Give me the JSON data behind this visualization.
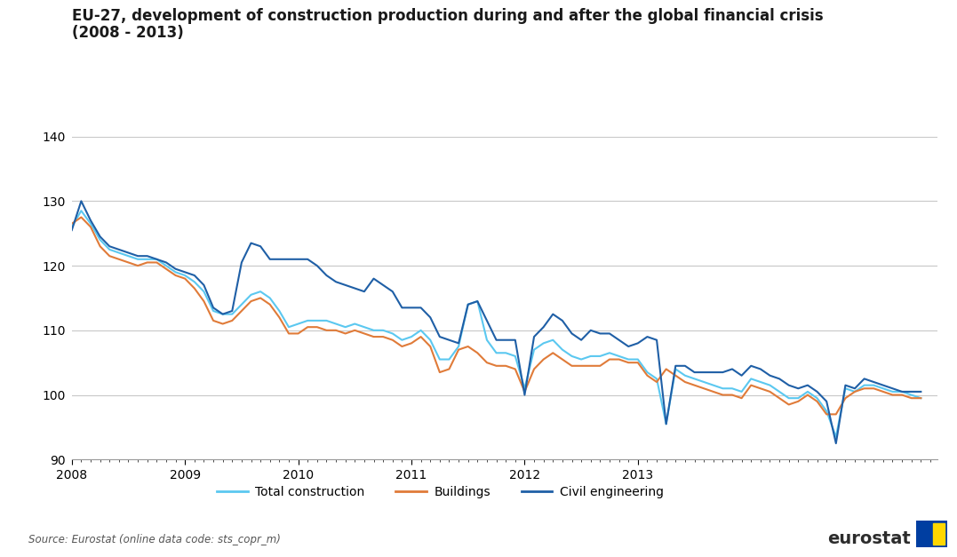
{
  "title_line1": "EU-27, development of construction production during and after the global financial crisis",
  "title_line2": "(2008 - 2013)",
  "source_text": "Source: Eurostat (online data code: sts_copr_m)",
  "ylim": [
    90,
    140
  ],
  "yticks": [
    90,
    100,
    110,
    120,
    130,
    140
  ],
  "colors": {
    "total_construction": "#5BC8F0",
    "buildings": "#E07B39",
    "civil_engineering": "#1F5FA6"
  },
  "legend_labels": [
    "Total construction",
    "Buildings",
    "Civil engineering"
  ],
  "background_color": "#FFFFFF",
  "grid_color": "#C8C8C8",
  "title_fontsize": 12,
  "tick_fontsize": 10,
  "legend_fontsize": 10,
  "total_construction": [
    126.0,
    128.5,
    126.5,
    124.0,
    122.5,
    122.0,
    121.5,
    121.0,
    121.0,
    121.0,
    120.0,
    119.0,
    118.5,
    117.5,
    116.0,
    113.0,
    112.5,
    112.5,
    114.0,
    115.5,
    116.0,
    115.0,
    113.0,
    110.5,
    111.0,
    111.5,
    111.5,
    111.5,
    111.0,
    110.5,
    111.0,
    110.5,
    110.0,
    110.0,
    109.5,
    108.5,
    109.0,
    110.0,
    108.5,
    105.5,
    105.5,
    107.5,
    114.0,
    114.5,
    108.5,
    106.5,
    106.5,
    106.0,
    101.0,
    107.0,
    108.0,
    108.5,
    107.0,
    106.0,
    105.5,
    106.0,
    106.0,
    106.5,
    106.0,
    105.5,
    105.5,
    103.5,
    102.5,
    95.5,
    104.0,
    103.0,
    102.5,
    102.0,
    101.5,
    101.0,
    101.0,
    100.5,
    102.5,
    102.0,
    101.5,
    100.5,
    99.5,
    99.5,
    100.5,
    99.5,
    97.5,
    93.5,
    101.0,
    100.5,
    101.5,
    101.5,
    101.0,
    100.5,
    100.5,
    100.0,
    99.5
  ],
  "buildings": [
    126.5,
    127.5,
    126.0,
    123.0,
    121.5,
    121.0,
    120.5,
    120.0,
    120.5,
    120.5,
    119.5,
    118.5,
    118.0,
    116.5,
    114.5,
    111.5,
    111.0,
    111.5,
    113.0,
    114.5,
    115.0,
    114.0,
    112.0,
    109.5,
    109.5,
    110.5,
    110.5,
    110.0,
    110.0,
    109.5,
    110.0,
    109.5,
    109.0,
    109.0,
    108.5,
    107.5,
    108.0,
    109.0,
    107.5,
    103.5,
    104.0,
    107.0,
    107.5,
    106.5,
    105.0,
    104.5,
    104.5,
    104.0,
    100.5,
    104.0,
    105.5,
    106.5,
    105.5,
    104.5,
    104.5,
    104.5,
    104.5,
    105.5,
    105.5,
    105.0,
    105.0,
    103.0,
    102.0,
    104.0,
    103.0,
    102.0,
    101.5,
    101.0,
    100.5,
    100.0,
    100.0,
    99.5,
    101.5,
    101.0,
    100.5,
    99.5,
    98.5,
    99.0,
    100.0,
    99.0,
    97.0,
    97.0,
    99.5,
    100.5,
    101.0,
    101.0,
    100.5,
    100.0,
    100.0,
    99.5,
    99.5
  ],
  "civil_engineering": [
    125.5,
    130.0,
    127.0,
    124.5,
    123.0,
    122.5,
    122.0,
    121.5,
    121.5,
    121.0,
    120.5,
    119.5,
    119.0,
    118.5,
    117.0,
    113.5,
    112.5,
    113.0,
    120.5,
    123.5,
    123.0,
    121.0,
    121.0,
    121.0,
    121.0,
    121.0,
    120.0,
    118.5,
    117.5,
    117.0,
    116.5,
    116.0,
    118.0,
    117.0,
    116.0,
    113.5,
    113.5,
    113.5,
    112.0,
    109.0,
    108.5,
    108.0,
    114.0,
    114.5,
    111.5,
    108.5,
    108.5,
    108.5,
    100.0,
    109.0,
    110.5,
    112.5,
    111.5,
    109.5,
    108.5,
    110.0,
    109.5,
    109.5,
    108.5,
    107.5,
    108.0,
    109.0,
    108.5,
    95.5,
    104.5,
    104.5,
    103.5,
    103.5,
    103.5,
    103.5,
    104.0,
    103.0,
    104.5,
    104.0,
    103.0,
    102.5,
    101.5,
    101.0,
    101.5,
    100.5,
    99.0,
    92.5,
    101.5,
    101.0,
    102.5,
    102.0,
    101.5,
    101.0,
    100.5,
    100.5,
    100.5
  ]
}
